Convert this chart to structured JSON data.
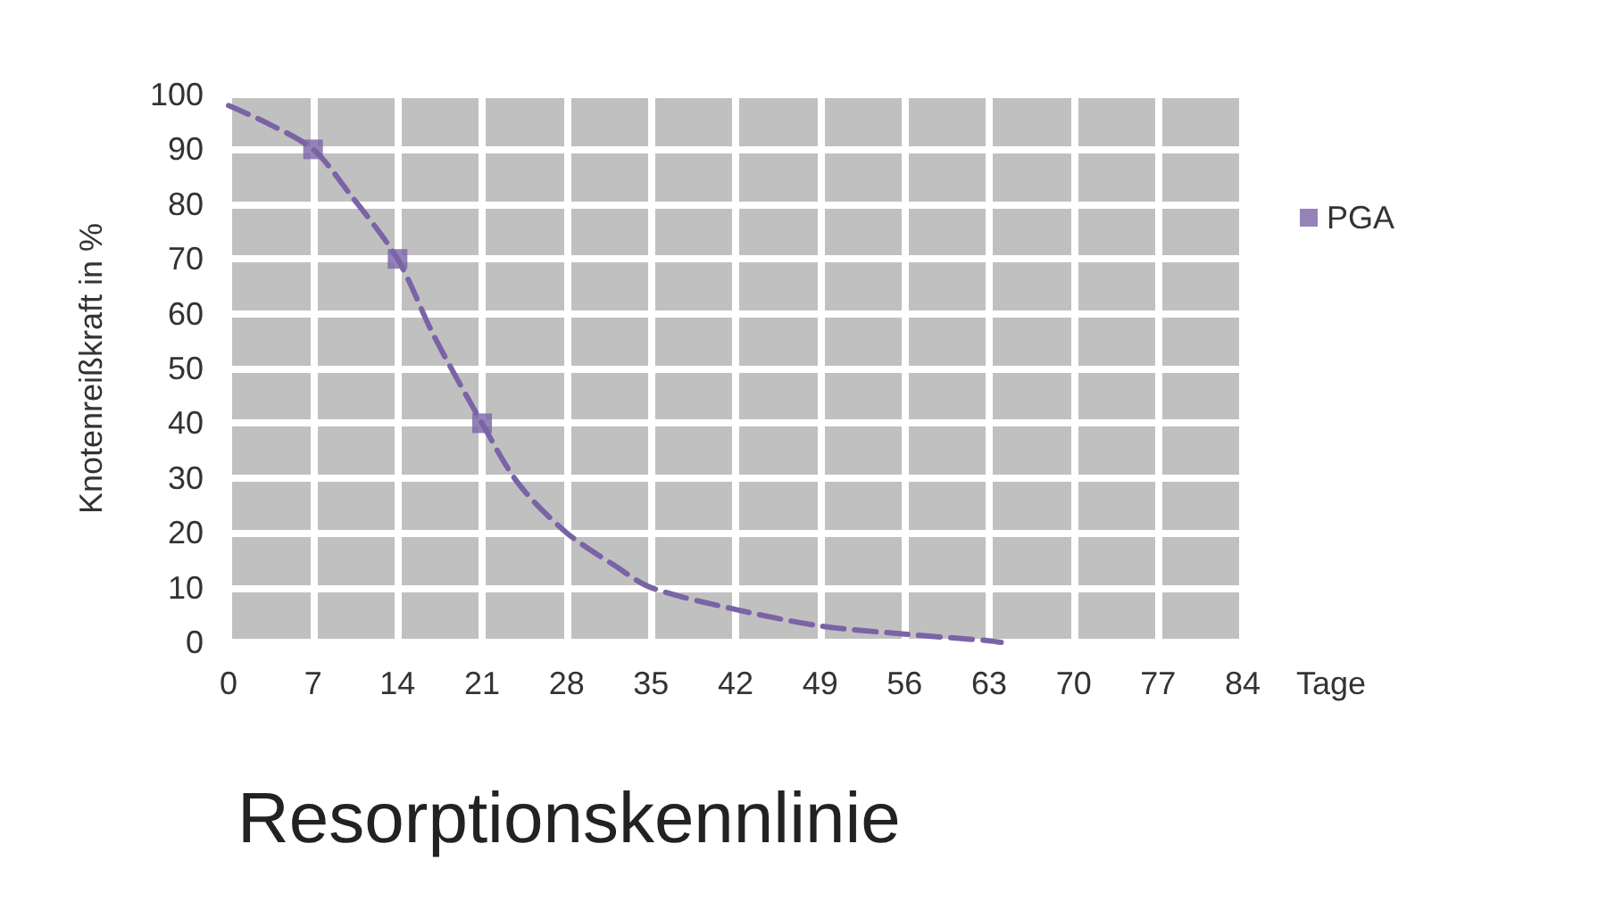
{
  "chart_data": {
    "type": "line",
    "title": "Resorptionskennlinie",
    "xlabel": "Tage",
    "ylabel": "Knotenreißkraft in %",
    "series": [
      {
        "color": "#7b63a6",
        "line_style": "dashed",
        "marker": "none",
        "x": [
          0,
          3,
          7,
          10,
          14,
          17,
          21,
          24,
          28,
          32,
          35,
          42,
          49,
          56,
          63,
          64
        ],
        "values": [
          98,
          95,
          90,
          82,
          70,
          56,
          40,
          29,
          20,
          14,
          10,
          6,
          3,
          1.5,
          0.3,
          0
        ]
      },
      {
        "type": "scatter",
        "name": "PGA",
        "color": "#7b63a6",
        "marker": "square",
        "x": [
          7,
          14,
          21
        ],
        "values": [
          90,
          70,
          40
        ]
      }
    ],
    "xlim": [
      0,
      84
    ],
    "xticks": [
      0,
      7,
      14,
      21,
      28,
      35,
      42,
      49,
      56,
      63,
      70,
      77,
      84
    ],
    "ylim": [
      0,
      100
    ],
    "yticks": [
      0,
      10,
      20,
      30,
      40,
      50,
      60,
      70,
      80,
      90,
      100
    ],
    "grid": true,
    "legend": "top right"
  }
}
